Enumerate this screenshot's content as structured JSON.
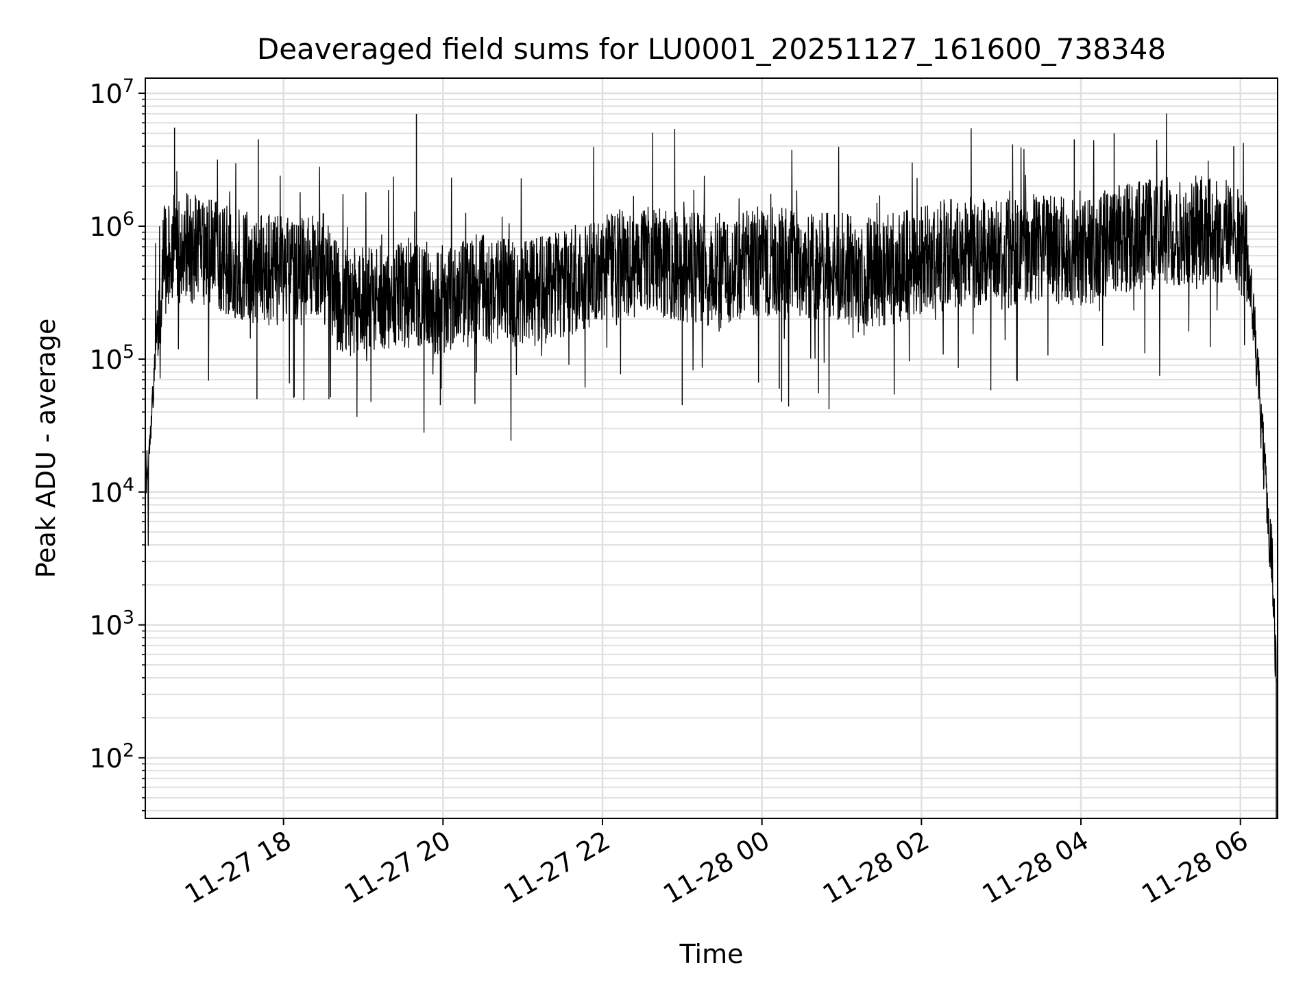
{
  "chart_data": {
    "type": "line",
    "title": "Deaveraged field sums for LU0001_20251127_161600_738348",
    "xlabel": "Time",
    "ylabel": "Peak ADU - average",
    "yscale": "log",
    "xlim": [
      "2025-11-27 16:16",
      "2025-11-28 06:28"
    ],
    "ylim": [
      35,
      13000000
    ],
    "grid": "major and minor, light gray",
    "line_color": "#000000",
    "grid_color": "#e0e0e0",
    "x_ticks": [
      {
        "value": "2025-11-27 18:00",
        "label": "11-27 18"
      },
      {
        "value": "2025-11-27 20:00",
        "label": "11-27 20"
      },
      {
        "value": "2025-11-27 22:00",
        "label": "11-27 22"
      },
      {
        "value": "2025-11-28 00:00",
        "label": "11-28 00"
      },
      {
        "value": "2025-11-28 02:00",
        "label": "11-28 02"
      },
      {
        "value": "2025-11-28 04:00",
        "label": "11-28 04"
      },
      {
        "value": "2025-11-28 06:00",
        "label": "11-28 06"
      }
    ],
    "y_ticks": [
      {
        "value": 100,
        "base": "10",
        "exp": "2"
      },
      {
        "value": 1000,
        "base": "10",
        "exp": "3"
      },
      {
        "value": 10000,
        "base": "10",
        "exp": "4"
      },
      {
        "value": 100000,
        "base": "10",
        "exp": "5"
      },
      {
        "value": 1000000,
        "base": "10",
        "exp": "6"
      },
      {
        "value": 10000000,
        "base": "10",
        "exp": "7"
      }
    ],
    "series": [
      {
        "x": [
          "2025-11-27 16:16",
          "2025-11-27 16:20",
          "2025-11-27 16:22",
          "2025-11-27 16:25",
          "2025-11-27 16:30",
          "2025-11-27 16:40",
          "2025-11-27 17:00",
          "2025-11-27 17:30",
          "2025-11-27 18:00",
          "2025-11-27 18:30",
          "2025-11-27 18:45",
          "2025-11-27 19:00",
          "2025-11-27 19:30",
          "2025-11-27 20:00",
          "2025-11-27 20:30",
          "2025-11-27 21:00",
          "2025-11-27 21:30",
          "2025-11-27 22:00",
          "2025-11-27 22:30",
          "2025-11-27 23:00",
          "2025-11-27 23:30",
          "2025-11-28 00:00",
          "2025-11-28 00:30",
          "2025-11-28 01:00",
          "2025-11-28 01:30",
          "2025-11-28 02:00",
          "2025-11-28 02:30",
          "2025-11-28 03:00",
          "2025-11-28 03:30",
          "2025-11-28 04:00",
          "2025-11-28 04:30",
          "2025-11-28 05:00",
          "2025-11-28 05:30",
          "2025-11-28 06:00",
          "2025-11-28 06:05",
          "2025-11-28 06:10",
          "2025-11-28 06:15",
          "2025-11-28 06:20",
          "2025-11-28 06:24",
          "2025-11-28 06:27"
        ],
        "y": [
          12000,
          25000,
          60000,
          200000,
          550000,
          700000,
          650000,
          500000,
          450000,
          480000,
          250000,
          300000,
          320000,
          280000,
          350000,
          300000,
          350000,
          500000,
          550000,
          500000,
          450000,
          550000,
          500000,
          480000,
          450000,
          550000,
          650000,
          600000,
          700000,
          600000,
          800000,
          900000,
          950000,
          800000,
          600000,
          200000,
          40000,
          8000,
          3000,
          400
        ]
      }
    ],
    "notes_peaks": [
      {
        "x": "2025-11-27 16:38",
        "y": 5500000
      },
      {
        "x": "2025-11-27 17:41",
        "y": 4500000
      },
      {
        "x": "2025-11-27 19:40",
        "y": 7000000
      },
      {
        "x": "2025-11-28 03:55",
        "y": 4500000
      },
      {
        "x": "2025-11-28 04:25",
        "y": 5000000
      },
      {
        "x": "2025-11-28 05:55",
        "y": 4000000
      }
    ],
    "notes_dips": [
      {
        "x": "2025-11-27 17:40",
        "y": 50000
      },
      {
        "x": "2025-11-27 19:58",
        "y": 45000
      },
      {
        "x": "2025-11-27 23:00",
        "y": 45000
      },
      {
        "x": "2025-11-28 00:13",
        "y": 60000
      }
    ]
  }
}
